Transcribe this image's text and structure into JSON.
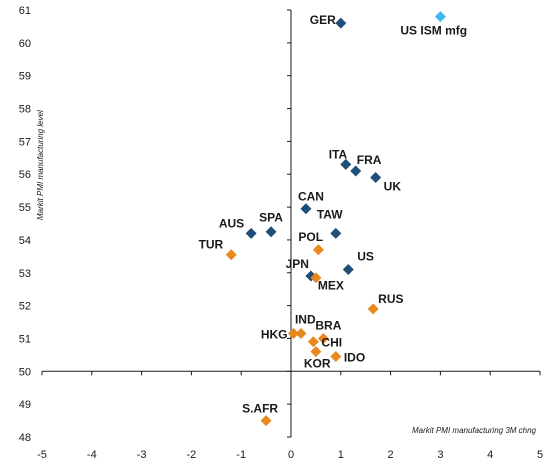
{
  "chart_data": {
    "type": "scatter",
    "title": "",
    "xlabel": "Markit PMI manufacturing 3M chng",
    "ylabel": "Markit PMI manufacturing level",
    "xlim": [
      -5,
      5
    ],
    "ylim": [
      48,
      61
    ],
    "x_ticks": [
      "-5",
      "-4",
      "-3",
      "-2",
      "-1",
      "0",
      "1",
      "2",
      "3",
      "4",
      "5"
    ],
    "y_ticks": [
      "48",
      "49",
      "50",
      "51",
      "52",
      "53",
      "54",
      "55",
      "56",
      "57",
      "58",
      "59",
      "60",
      "61"
    ],
    "grid": false,
    "series": [
      {
        "color": "#1f4e79",
        "marker": "diamond",
        "points": [
          {
            "label": "GER",
            "x": 1.0,
            "y": 60.6
          },
          {
            "label": "ITA",
            "x": 1.1,
            "y": 56.3
          },
          {
            "label": "FRA",
            "x": 1.3,
            "y": 56.1
          },
          {
            "label": "UK",
            "x": 1.7,
            "y": 55.9
          },
          {
            "label": "CAN",
            "x": 0.3,
            "y": 54.95
          },
          {
            "label": "SPA",
            "x": -0.4,
            "y": 54.25
          },
          {
            "label": "AUS",
            "x": -0.8,
            "y": 54.2
          },
          {
            "label": "TAW",
            "x": 0.9,
            "y": 54.2
          },
          {
            "label": "US",
            "x": 1.15,
            "y": 53.1
          },
          {
            "label": "JPN",
            "x": 0.4,
            "y": 52.9
          }
        ]
      },
      {
        "color": "#e8891f",
        "marker": "diamond",
        "points": [
          {
            "label": "POL",
            "x": 0.55,
            "y": 53.7
          },
          {
            "label": "TUR",
            "x": -1.2,
            "y": 53.55
          },
          {
            "label": "MEX",
            "x": 0.5,
            "y": 52.85
          },
          {
            "label": "RUS",
            "x": 1.65,
            "y": 51.9
          },
          {
            "label": "IND",
            "x": 0.2,
            "y": 51.15
          },
          {
            "label": "HKG",
            "x": 0.05,
            "y": 51.15
          },
          {
            "label": "BRA",
            "x": 0.65,
            "y": 51.0
          },
          {
            "label": "CHI",
            "x": 0.45,
            "y": 50.9
          },
          {
            "label": "KOR",
            "x": 0.5,
            "y": 50.6
          },
          {
            "label": "IDO",
            "x": 0.9,
            "y": 50.45
          },
          {
            "label": "S.AFR",
            "x": -0.5,
            "y": 48.5
          }
        ]
      },
      {
        "color": "#3fb8f0",
        "marker": "diamond",
        "points": [
          {
            "label": "US ISM mfg",
            "x": 3.0,
            "y": 60.8
          }
        ]
      }
    ]
  }
}
